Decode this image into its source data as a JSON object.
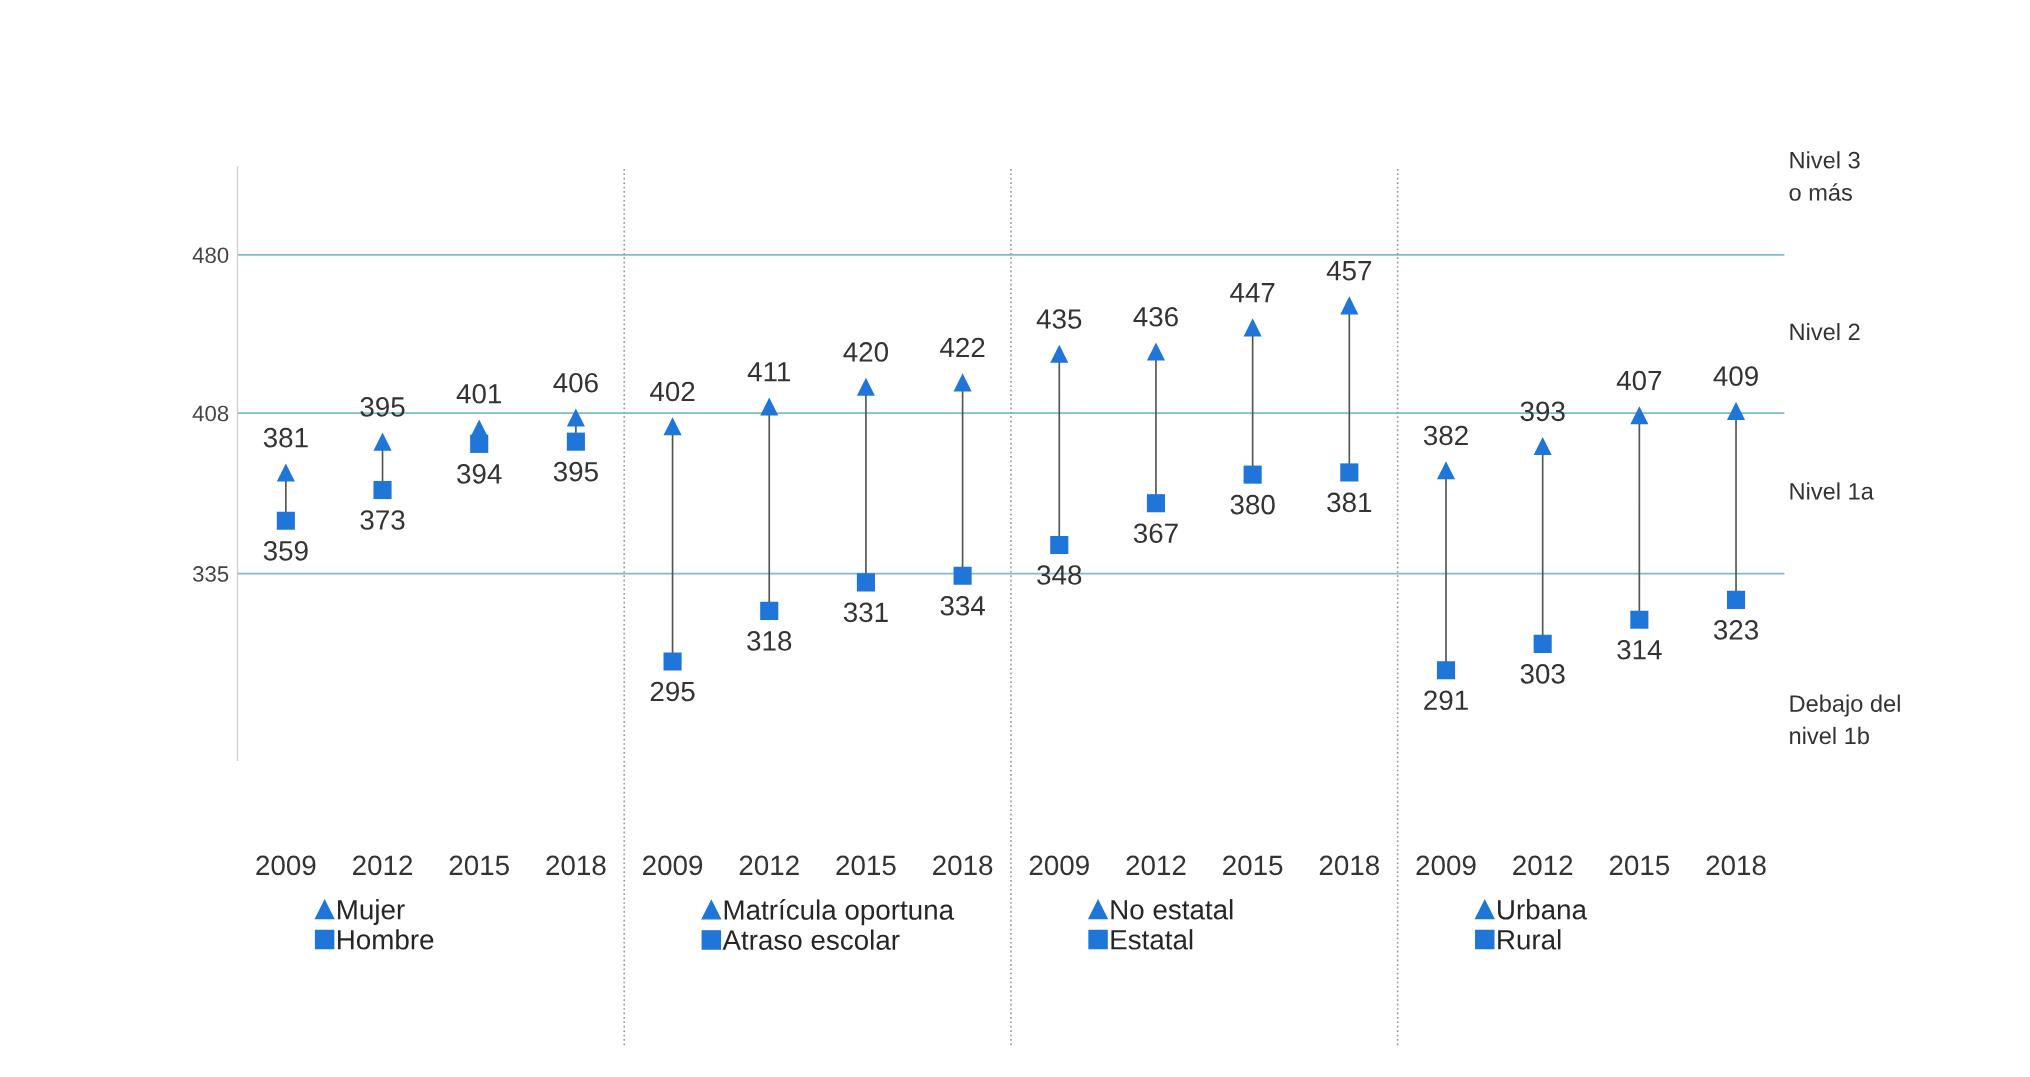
{
  "chart_data": {
    "type": "scatter",
    "categories": [
      "2009",
      "2012",
      "2015",
      "2018",
      "2009",
      "2012",
      "2015",
      "2018",
      "2009",
      "2012",
      "2015",
      "2018",
      "2009",
      "2012",
      "2015",
      "2018"
    ],
    "series": [
      {
        "name": "Mujer",
        "color": "#1f75d8",
        "marker": "triangle",
        "values": [
          381,
          395,
          401,
          406,
          null,
          null,
          null,
          null,
          null,
          null,
          null,
          null,
          null,
          null,
          null,
          null
        ]
      },
      {
        "name": "Hombre",
        "color": "#1f75d8",
        "marker": "square",
        "values": [
          359,
          373,
          394,
          395,
          null,
          null,
          null,
          null,
          null,
          null,
          null,
          null,
          null,
          null,
          null,
          null
        ]
      },
      {
        "name": "Matrícula oportuna",
        "color": "#1f75d8",
        "marker": "triangle",
        "values": [
          null,
          null,
          null,
          null,
          402,
          411,
          420,
          422,
          null,
          null,
          null,
          null,
          null,
          null,
          null,
          null
        ]
      },
      {
        "name": "Atraso escolar",
        "color": "#1f75d8",
        "marker": "square",
        "values": [
          null,
          null,
          null,
          null,
          295,
          318,
          331,
          334,
          null,
          null,
          null,
          null,
          null,
          null,
          null,
          null
        ]
      },
      {
        "name": "No estatal",
        "color": "#1f75d8",
        "marker": "triangle",
        "values": [
          null,
          null,
          null,
          null,
          null,
          null,
          null,
          null,
          435,
          436,
          447,
          457,
          null,
          null,
          null,
          null
        ]
      },
      {
        "name": "Estatal",
        "color": "#1f75d8",
        "marker": "square",
        "values": [
          null,
          null,
          null,
          null,
          null,
          null,
          null,
          null,
          348,
          367,
          380,
          381,
          null,
          null,
          null,
          null
        ]
      },
      {
        "name": "Urbana",
        "color": "#1f75d8",
        "marker": "triangle",
        "values": [
          null,
          null,
          null,
          null,
          null,
          null,
          null,
          null,
          null,
          null,
          null,
          null,
          382,
          393,
          407,
          409
        ]
      },
      {
        "name": "Rural",
        "color": "#1f75d8",
        "marker": "square",
        "values": [
          null,
          null,
          null,
          null,
          null,
          null,
          null,
          null,
          null,
          null,
          null,
          null,
          291,
          303,
          314,
          323
        ]
      }
    ],
    "ylim": [
      250,
      520
    ],
    "yticks": [
      335,
      408,
      480
    ],
    "ref_lines": [
      {
        "axis": "y",
        "value": 480,
        "color": "#7dbccb",
        "line_style": "solid"
      },
      {
        "axis": "y",
        "value": 408,
        "color": "#7dbccb",
        "line_style": "solid"
      },
      {
        "axis": "y",
        "value": 335,
        "color": "#7dbccb",
        "line_style": "solid"
      }
    ],
    "annotations": [
      "Nivel 3\no más",
      "Nivel 2",
      "Nivel 1a",
      "Debajo del\nnivel 1b"
    ],
    "data_labels": true,
    "legend": "bottom",
    "grid": false
  }
}
